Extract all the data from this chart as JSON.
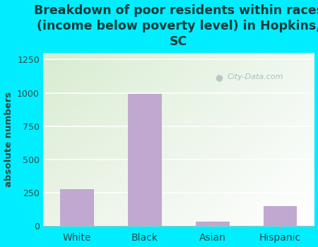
{
  "categories": [
    "White",
    "Black",
    "Asian",
    "Hispanic"
  ],
  "values": [
    275,
    990,
    30,
    150
  ],
  "bar_color": "#c0a8d0",
  "title": "Breakdown of poor residents within races\n(income below poverty level) in Hopkins,\nSC",
  "ylabel": "absolute numbers",
  "ylim": [
    0,
    1300
  ],
  "yticks": [
    0,
    250,
    500,
    750,
    1000,
    1250
  ],
  "background_color": "#00eeff",
  "plot_bg_color_topleft": "#d8ecd0",
  "plot_bg_color_topright": "#eef8f0",
  "plot_bg_color_bottomright": "#ffffff",
  "title_color": "#1a3a3a",
  "tick_color": "#2a4a4a",
  "watermark": "City-Data.com",
  "title_fontsize": 12.5,
  "ylabel_fontsize": 9.5
}
